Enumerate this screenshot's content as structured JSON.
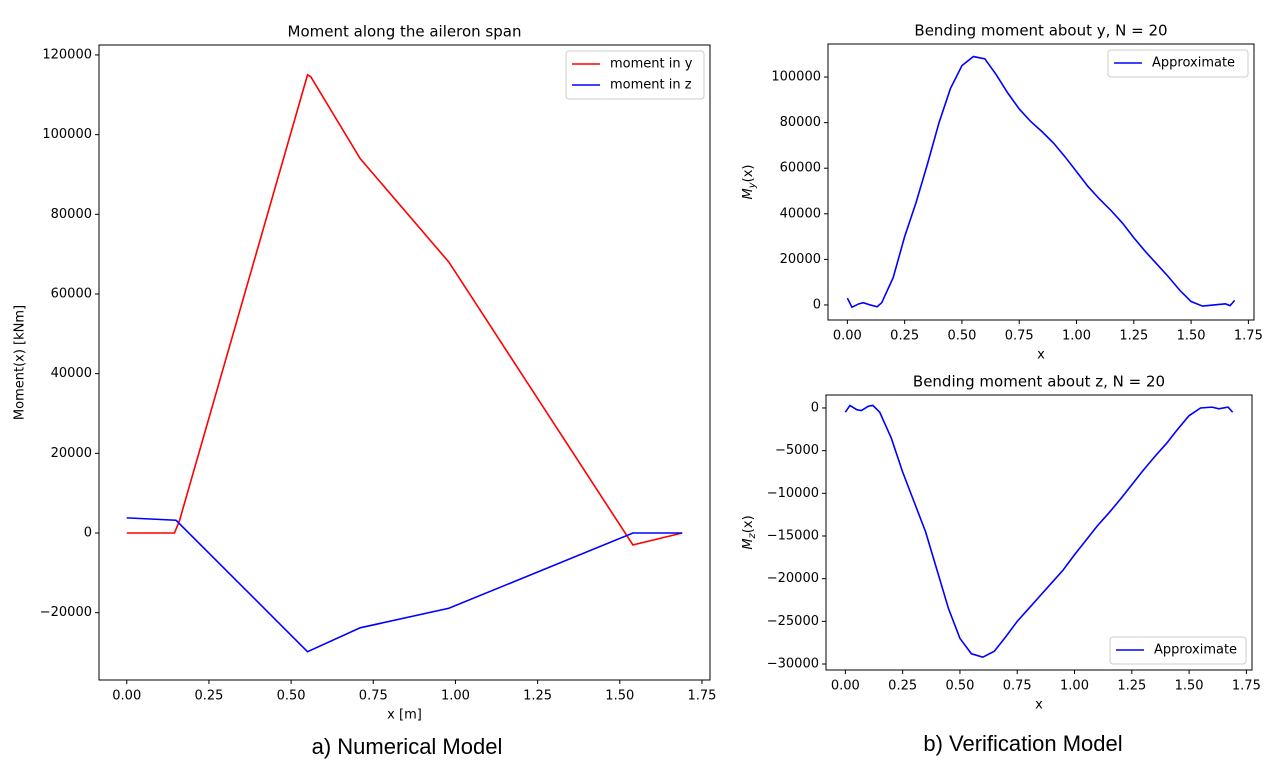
{
  "chart_data": [
    {
      "type": "line",
      "title": "Moment along the aileron span",
      "xlabel": "x [m]",
      "ylabel": "Moment(x) [kNm]",
      "legend": "upper right",
      "xlim": [
        -0.0845,
        1.7745
      ],
      "ylim": [
        -36900,
        122500
      ],
      "xticks": [
        {
          "value": 0,
          "label": "0.00"
        },
        {
          "value": 0.25,
          "label": "0.25"
        },
        {
          "value": 0.5,
          "label": "0.50"
        },
        {
          "value": 0.75,
          "label": "0.75"
        },
        {
          "value": 1,
          "label": "1.00"
        },
        {
          "value": 1.25,
          "label": "1.25"
        },
        {
          "value": 1.5,
          "label": "1.50"
        },
        {
          "value": 1.75,
          "label": "1.75"
        }
      ],
      "yticks": [
        {
          "value": -20000,
          "label": "−20000"
        },
        0,
        20000,
        40000,
        60000,
        80000,
        100000,
        120000
      ],
      "series": [
        {
          "name": "moment in y",
          "color": "#ff0000",
          "x": [
            0,
            0.145,
            0.16,
            0.55,
            0.56,
            0.71,
            0.98,
            1.54,
            1.69
          ],
          "values": [
            0,
            0,
            3000,
            115000,
            114500,
            94000,
            68000,
            -3000,
            0
          ]
        },
        {
          "name": "moment in z",
          "color": "#0000ff",
          "x": [
            0,
            0.15,
            0.55,
            0.71,
            0.98,
            1.54,
            1.69
          ],
          "values": [
            3800,
            3200,
            -29800,
            -23800,
            -18900,
            0,
            0
          ]
        }
      ]
    },
    {
      "type": "line",
      "title": "Bending moment about y, N = 20",
      "xlabel": "x",
      "ylabel": "M_y(x)",
      "legend": "upper right",
      "xlim": [
        -0.0845,
        1.7745
      ],
      "ylim": [
        -6600,
        114500
      ],
      "xticks": [
        {
          "value": 0,
          "label": "0.00"
        },
        {
          "value": 0.25,
          "label": "0.25"
        },
        {
          "value": 0.5,
          "label": "0.50"
        },
        {
          "value": 0.75,
          "label": "0.75"
        },
        {
          "value": 1,
          "label": "1.00"
        },
        {
          "value": 1.25,
          "label": "1.25"
        },
        {
          "value": 1.5,
          "label": "1.50"
        },
        {
          "value": 1.75,
          "label": "1.75"
        }
      ],
      "yticks": [
        0,
        20000,
        40000,
        60000,
        80000,
        100000
      ],
      "series": [
        {
          "name": "Approximate",
          "color": "#0000ff",
          "x": [
            0,
            0.02,
            0.05,
            0.07,
            0.1,
            0.13,
            0.15,
            0.2,
            0.25,
            0.3,
            0.35,
            0.4,
            0.45,
            0.5,
            0.55,
            0.6,
            0.65,
            0.7,
            0.75,
            0.8,
            0.85,
            0.9,
            0.95,
            1,
            1.05,
            1.1,
            1.15,
            1.2,
            1.25,
            1.3,
            1.35,
            1.4,
            1.45,
            1.5,
            1.55,
            1.6,
            1.65,
            1.67,
            1.69
          ],
          "values": [
            3000,
            -1000,
            500,
            1000,
            0,
            -800,
            1000,
            12000,
            30000,
            45000,
            62000,
            80000,
            95000,
            105000,
            109000,
            108000,
            101000,
            93000,
            86000,
            80500,
            76000,
            71000,
            65000,
            58500,
            52000,
            46500,
            41500,
            36000,
            29500,
            23500,
            18000,
            12500,
            6500,
            1500,
            -500,
            0,
            500,
            -300,
            2000
          ]
        }
      ]
    },
    {
      "type": "line",
      "title": "Bending moment about z, N = 20",
      "xlabel": "x",
      "ylabel": "M_z(x)",
      "legend": "lower right",
      "xlim": [
        -0.0845,
        1.7745
      ],
      "ylim": [
        -30700,
        1520
      ],
      "xticks": [
        {
          "value": 0,
          "label": "0.00"
        },
        {
          "value": 0.25,
          "label": "0.25"
        },
        {
          "value": 0.5,
          "label": "0.50"
        },
        {
          "value": 0.75,
          "label": "0.75"
        },
        {
          "value": 1,
          "label": "1.00"
        },
        {
          "value": 1.25,
          "label": "1.25"
        },
        {
          "value": 1.5,
          "label": "1.50"
        },
        {
          "value": 1.75,
          "label": "1.75"
        }
      ],
      "yticks": [
        {
          "value": -30000,
          "label": "−30000"
        },
        {
          "value": -25000,
          "label": "−25000"
        },
        {
          "value": -20000,
          "label": "−20000"
        },
        {
          "value": -15000,
          "label": "−15000"
        },
        {
          "value": -10000,
          "label": "−10000"
        },
        {
          "value": -5000,
          "label": "−5000"
        },
        0
      ],
      "series": [
        {
          "name": "Approximate",
          "color": "#0000ff",
          "x": [
            0,
            0.02,
            0.05,
            0.07,
            0.1,
            0.12,
            0.15,
            0.2,
            0.25,
            0.3,
            0.35,
            0.4,
            0.45,
            0.5,
            0.55,
            0.6,
            0.65,
            0.7,
            0.75,
            0.8,
            0.85,
            0.9,
            0.95,
            1,
            1.05,
            1.1,
            1.15,
            1.2,
            1.25,
            1.3,
            1.35,
            1.4,
            1.45,
            1.5,
            1.55,
            1.6,
            1.63,
            1.67,
            1.69
          ],
          "values": [
            -500,
            300,
            -200,
            -300,
            200,
            300,
            -500,
            -3500,
            -7500,
            -11000,
            -14500,
            -19000,
            -23500,
            -27000,
            -28800,
            -29200,
            -28500,
            -26800,
            -25000,
            -23500,
            -22000,
            -20500,
            -19000,
            -17200,
            -15500,
            -13800,
            -12300,
            -10700,
            -9000,
            -7300,
            -5700,
            -4200,
            -2500,
            -900,
            0,
            100,
            -100,
            100,
            -500
          ]
        }
      ]
    }
  ],
  "captions": [
    "a) Numerical Model",
    "b) Verification Model"
  ]
}
